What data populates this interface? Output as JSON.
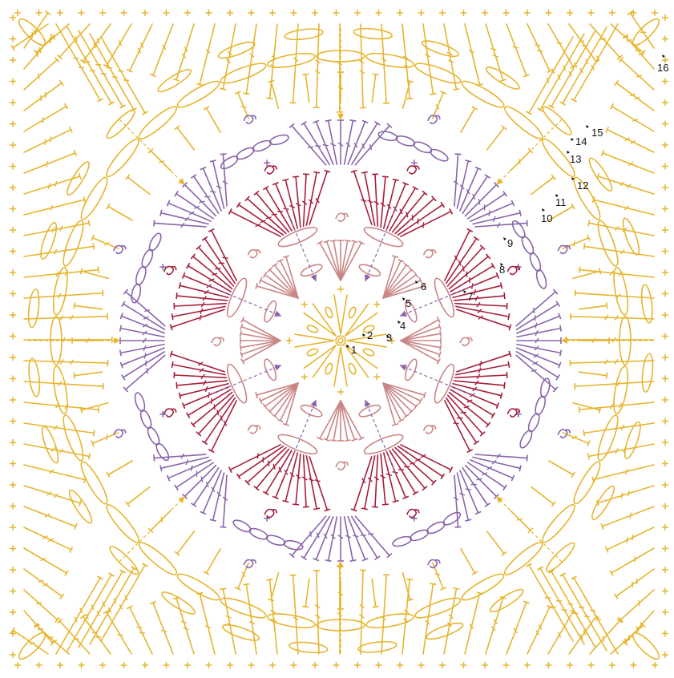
{
  "colors": {
    "background": "#ffffff",
    "yellow": "#e6b52e",
    "purple": "#8a64aa",
    "crimson": "#a61e3a",
    "rose": "#c98585",
    "text": "#111111"
  },
  "round_labels": [
    "1",
    "2",
    "3",
    "4",
    "5",
    "6",
    "7",
    "8",
    "9",
    "10",
    "11",
    "12",
    "13",
    "14",
    "15",
    "16"
  ]
}
